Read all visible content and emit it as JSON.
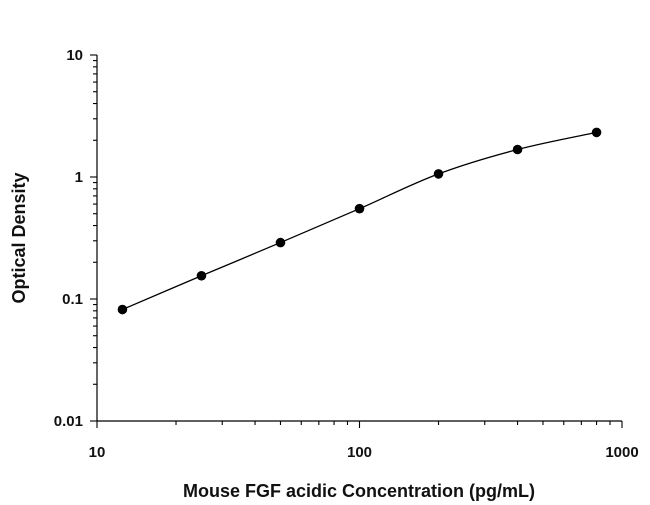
{
  "chart_data": {
    "type": "scatter",
    "xlabel": "Mouse FGF acidic Concentration (pg/mL)",
    "ylabel": "Optical Density",
    "xscale": "log",
    "yscale": "log",
    "xlim": [
      10,
      1000
    ],
    "ylim": [
      0.01,
      10
    ],
    "x_tick_labels": [
      "10",
      "100",
      "1000"
    ],
    "y_tick_labels": [
      "10",
      "1",
      "0.1",
      "0.01"
    ],
    "grid": false,
    "legend": "none",
    "series": [
      {
        "x": [
          12.5,
          25,
          50,
          100,
          200,
          400,
          800
        ],
        "y": [
          0.082,
          0.155,
          0.29,
          0.55,
          1.06,
          1.68,
          2.32
        ]
      }
    ],
    "fit_curve": "four-parameter logistic fit through the standard points",
    "colors": {
      "marker": "#000000",
      "axis": "#000000",
      "curve": "#000000"
    }
  }
}
